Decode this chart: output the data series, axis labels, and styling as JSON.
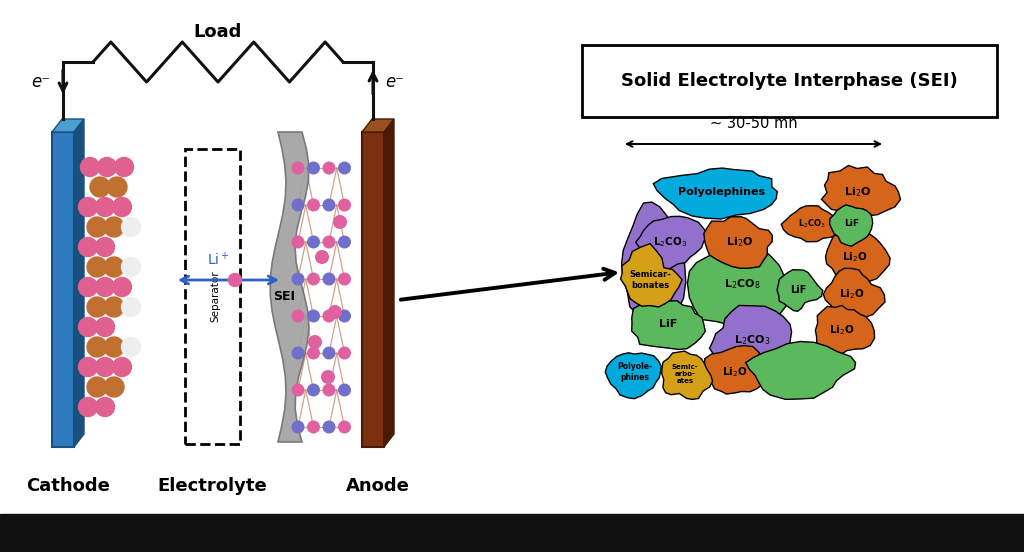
{
  "bg_color": "#ffffff",
  "black_bar_color": "#111111",
  "title_box_text": "Solid Electrolyte Interphase (SEI)",
  "load_text": "Load",
  "cathode_text": "Cathode",
  "electrolyte_text": "Electrolyte",
  "anode_text": "Anode",
  "separator_text": "Separator",
  "sei_label": "SEI",
  "e_minus_left": "e⁻",
  "e_minus_right": "e⁻",
  "scale_text": "~ 30-50 mn",
  "cathode_color": "#2e7bbf",
  "cathode_dark": "#1a5080",
  "cathode_light": "#4a9fd0",
  "anode_color": "#7b3010",
  "anode_dark": "#4a1a05",
  "anode_light": "#9a5020",
  "sei_color": "#999999",
  "li_arrow_color": "#3060c0",
  "wire_color": "#111111"
}
